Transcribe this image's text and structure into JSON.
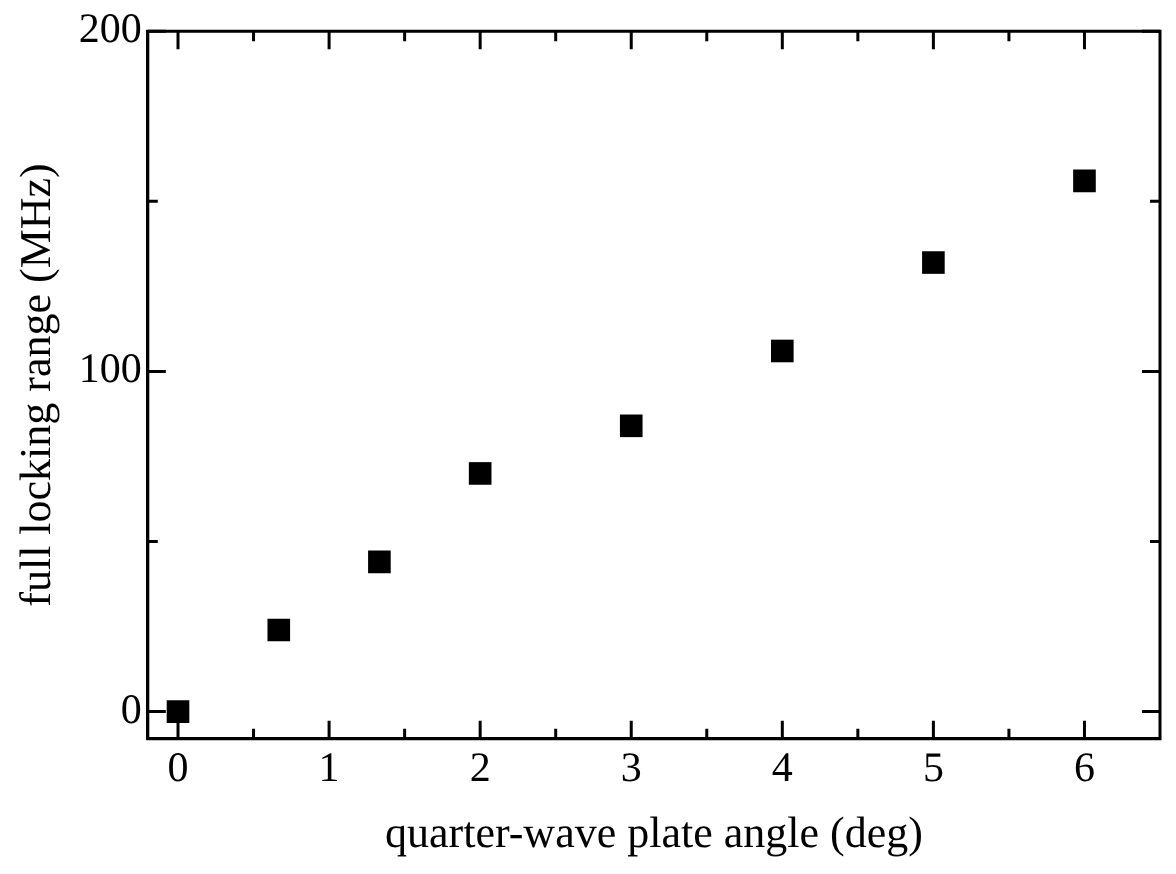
{
  "chart_data": {
    "type": "scatter",
    "xlabel": "quarter-wave plate angle (deg)",
    "ylabel": "full locking range (MHz)",
    "x": [
      0,
      0.667,
      1.333,
      2,
      3,
      4,
      5,
      6
    ],
    "series": [
      {
        "color": "#000000",
        "values": [
          0,
          24,
          44,
          70,
          84,
          106,
          132,
          156
        ]
      }
    ],
    "marker": "square",
    "grid": false,
    "legend": false,
    "xlim": [
      -0.2,
      6.5
    ],
    "xticks": [
      0,
      {
        "value": 0.5,
        "label": null
      },
      1,
      {
        "value": 1.5,
        "label": null
      },
      2,
      {
        "value": 2.5,
        "label": null
      },
      3,
      {
        "value": 3.5,
        "label": null
      },
      4,
      {
        "value": 4.5,
        "label": null
      },
      5,
      {
        "value": 5.5,
        "label": null
      },
      6
    ],
    "ylim": [
      -8,
      200
    ],
    "yticks": [
      0,
      {
        "value": 50,
        "label": null
      },
      100,
      {
        "value": 150,
        "label": null
      },
      200
    ]
  }
}
